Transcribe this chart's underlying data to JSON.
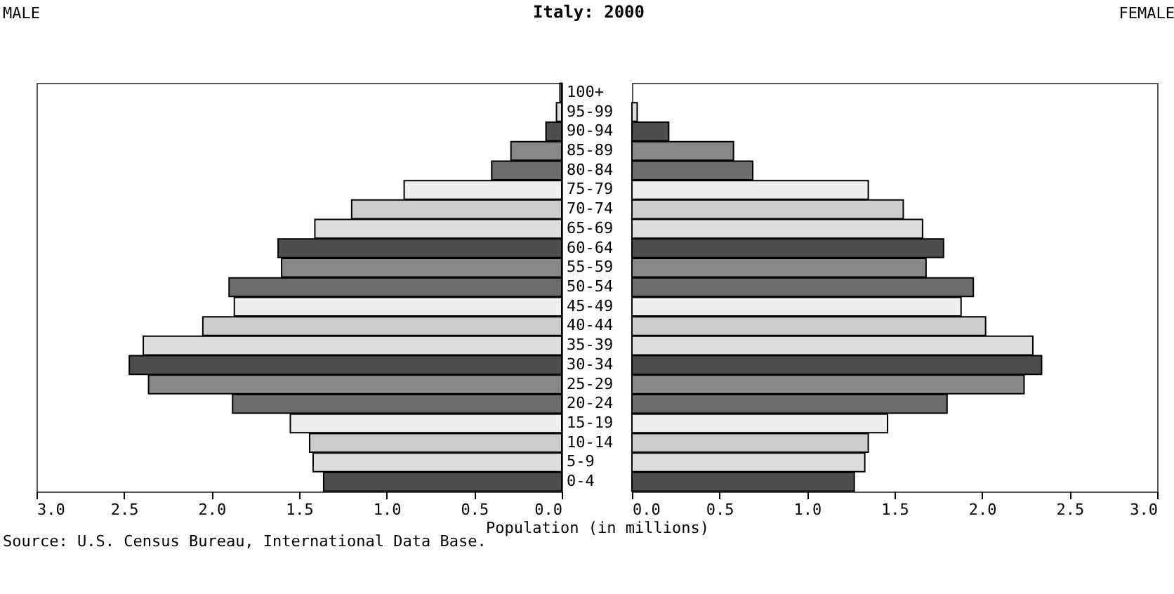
{
  "chart_data": [
    {
      "type": "bar",
      "orientation": "horizontal",
      "title": "Italy: 2000",
      "subtitle": "MALE",
      "annotations": [
        "Source: U.S. Census Bureau, International Data Base."
      ],
      "categories": [
        "100+",
        "95-99",
        "90-94",
        "85-89",
        "80-84",
        "75-79",
        "70-74",
        "65-69",
        "60-64",
        "55-59",
        "50-54",
        "45-49",
        "40-44",
        "35-39",
        "30-34",
        "25-29",
        "20-24",
        "15-19",
        "10-14",
        "5-9",
        "0-4"
      ],
      "colors": [
        "#cccccc",
        "#dddddd",
        "#4d4d4d",
        "#888888",
        "#6b6b6b",
        "#eeeeee",
        "#cccccc",
        "#dddddd",
        "#4d4d4d",
        "#888888",
        "#6b6b6b",
        "#eeeeee",
        "#cccccc",
        "#dddddd",
        "#4d4d4d",
        "#888888",
        "#6b6b6b",
        "#eeeeee",
        "#cccccc",
        "#dddddd",
        "#4d4d4d"
      ],
      "values": [
        0.01,
        0.03,
        0.09,
        0.29,
        0.4,
        0.9,
        1.2,
        1.41,
        1.62,
        1.6,
        1.9,
        1.87,
        2.05,
        2.39,
        2.47,
        2.36,
        1.88,
        1.55,
        1.44,
        1.42,
        1.36
      ],
      "xlim": [
        3,
        0
      ],
      "xticks": [
        {
          "value": 3,
          "label": "3.0"
        },
        {
          "value": 2.5,
          "label": "2.5"
        },
        {
          "value": 2,
          "label": "2.0"
        },
        {
          "value": 1.5,
          "label": "1.5"
        },
        {
          "value": 1,
          "label": "1.0"
        },
        {
          "value": 0.5,
          "label": "0.5"
        },
        {
          "value": 0,
          "label": "0.0"
        }
      ],
      "grid": false,
      "legend": false
    },
    {
      "type": "bar",
      "orientation": "horizontal",
      "subtitle": "FEMALE",
      "xlabel": "Population (in millions)",
      "tick_labels": "x",
      "categories": [
        null,
        null,
        null,
        null,
        null,
        null,
        null,
        null,
        null,
        null,
        null,
        null,
        null,
        null,
        null,
        null,
        null,
        null,
        null,
        null,
        null
      ],
      "colors": [
        "#cccccc",
        "#dddddd",
        "#4d4d4d",
        "#888888",
        "#6b6b6b",
        "#eeeeee",
        "#cccccc",
        "#dddddd",
        "#4d4d4d",
        "#888888",
        "#6b6b6b",
        "#eeeeee",
        "#cccccc",
        "#dddddd",
        "#4d4d4d",
        "#888888",
        "#6b6b6b",
        "#eeeeee",
        "#cccccc",
        "#dddddd",
        "#4d4d4d"
      ],
      "values": [
        0,
        0.03,
        0.21,
        0.58,
        0.69,
        1.35,
        1.55,
        1.66,
        1.78,
        1.68,
        1.95,
        1.88,
        2.02,
        2.29,
        2.34,
        2.24,
        1.8,
        1.46,
        1.35,
        1.33,
        1.27
      ],
      "xlim": [
        0,
        3
      ],
      "grid": false,
      "legend": false,
      "xticks": [
        {
          "value": 0,
          "label": "0.0"
        },
        {
          "value": 0.5,
          "label": "0.5"
        },
        {
          "value": 1,
          "label": "1.0"
        },
        {
          "value": 1.5,
          "label": "1.5"
        },
        {
          "value": 2,
          "label": "2.0"
        },
        {
          "value": 2.5,
          "label": "2.5"
        },
        {
          "value": 3,
          "label": "3.0"
        }
      ]
    }
  ]
}
